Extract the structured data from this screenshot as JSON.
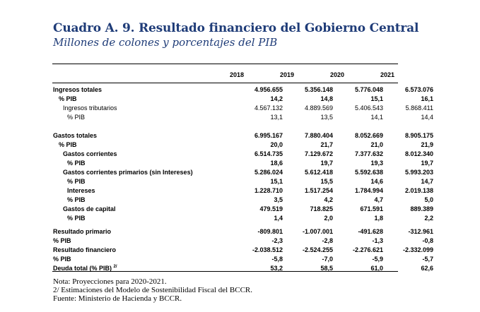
{
  "title": "Cuadro A. 9.  Resultado financiero del Gobierno Central",
  "subtitle": "Millones de colones y porcentajes del PIB",
  "years": [
    "2018",
    "2019",
    "2020",
    "2021"
  ],
  "rows": {
    "ingresos": {
      "label": "Ingresos totales",
      "v": [
        "4.956.655",
        "5.356.148",
        "5.776.048",
        "6.573.076"
      ]
    },
    "ingresos_pib": {
      "label": "% PIB",
      "v": [
        "14,2",
        "14,8",
        "15,1",
        "16,1"
      ]
    },
    "tributarios": {
      "label": "Ingresos tributarios",
      "v": [
        "4.567.132",
        "4.889.569",
        "5.406.543",
        "5.868.411"
      ]
    },
    "tributarios_pib": {
      "label": "% PIB",
      "v": [
        "13,1",
        "13,5",
        "14,1",
        "14,4"
      ]
    },
    "gastos": {
      "label": "Gastos totales",
      "v": [
        "6.995.167",
        "7.880.404",
        "8.052.669",
        "8.905.175"
      ]
    },
    "gastos_pib": {
      "label": "% PIB",
      "v": [
        "20,0",
        "21,7",
        "21,0",
        "21,9"
      ]
    },
    "corrientes": {
      "label": "Gastos corrientes",
      "v": [
        "6.514.735",
        "7.129.672",
        "7.377.632",
        "8.012.340"
      ]
    },
    "corrientes_pib": {
      "label": "% PIB",
      "v": [
        "18,6",
        "19,7",
        "19,3",
        "19,7"
      ]
    },
    "primarios": {
      "label": "Gastos corrientes primarios (sin Intereses)",
      "v": [
        "5.286.024",
        "5.612.418",
        "5.592.638",
        "5.993.203"
      ]
    },
    "primarios_pib": {
      "label": "% PIB",
      "v": [
        "15,1",
        "15,5",
        "14,6",
        "14,7"
      ]
    },
    "intereses": {
      "label": "Intereses",
      "v": [
        "1.228.710",
        "1.517.254",
        "1.784.994",
        "2.019.138"
      ]
    },
    "intereses_pib": {
      "label": "% PIB",
      "v": [
        "3,5",
        "4,2",
        "4,7",
        "5,0"
      ]
    },
    "capital": {
      "label": "Gastos de capital",
      "v": [
        "479.519",
        "718.825",
        "671.591",
        "889.389"
      ]
    },
    "capital_pib": {
      "label": "% PIB",
      "v": [
        "1,4",
        "2,0",
        "1,8",
        "2,2"
      ]
    },
    "primario": {
      "label": "Resultado primario",
      "v": [
        "-809.801",
        "-1.007.001",
        "-491.628",
        "-312.961"
      ]
    },
    "primario_pib": {
      "label": "% PIB",
      "v": [
        "-2,3",
        "-2,8",
        "-1,3",
        "-0,8"
      ]
    },
    "financiero": {
      "label": "Resultado financiero",
      "v": [
        "-2.038.512",
        "-2.524.255",
        "-2.276.621",
        "-2.332.099"
      ]
    },
    "financiero_pib": {
      "label": "% PIB",
      "v": [
        "-5,8",
        "-7,0",
        "-5,9",
        "-5,7"
      ]
    },
    "deuda": {
      "label": "Deuda total (% PIB)",
      "sup": "2/",
      "v": [
        "53,2",
        "58,5",
        "61,0",
        "62,6"
      ]
    }
  },
  "notes": [
    "Nota: Proyecciones para 2020-2021.",
    "2/ Estimaciones del Modelo de Sostenibilidad Fiscal del BCCR.",
    "Fuente: Ministerio de Hacienda y BCCR."
  ]
}
